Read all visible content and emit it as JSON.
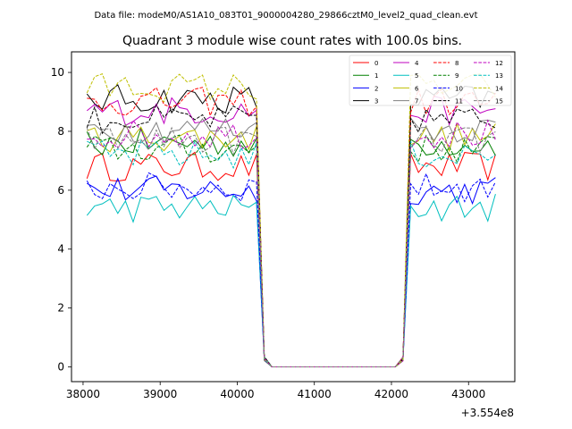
{
  "header": {
    "data_file_text": "Data file: modeM0/AS1A10_083T01_9000004280_29866cztM0_level2_quad_clean.evt"
  },
  "chart_data": {
    "type": "line",
    "title": "Quadrant 3 module wise count rates with 100.0s bins.",
    "xlabel": "",
    "ylabel": "",
    "x_offset_text": "+3.554e8",
    "xlim": [
      37850,
      43600
    ],
    "ylim": [
      -0.5,
      10.7
    ],
    "xticks": [
      38000,
      39000,
      40000,
      41000,
      42000,
      43000
    ],
    "xtick_labels": [
      "38000",
      "39000",
      "40000",
      "41000",
      "42000",
      "43000"
    ],
    "yticks": [
      0,
      2,
      4,
      6,
      8,
      10
    ],
    "ytick_labels": [
      "0",
      "2",
      "4",
      "6",
      "8",
      "10"
    ],
    "grid": false,
    "legend_position": "top-right",
    "legend_columns": 4,
    "series": [
      {
        "name": "0",
        "color": "#ff0000",
        "style": "solid",
        "base": 6.8
      },
      {
        "name": "1",
        "color": "#008000",
        "style": "solid",
        "base": 7.6
      },
      {
        "name": "2",
        "color": "#0000ff",
        "style": "solid",
        "base": 6.0
      },
      {
        "name": "3",
        "color": "#000000",
        "style": "solid",
        "base": 9.1
      },
      {
        "name": "4",
        "color": "#bf00bf",
        "style": "solid",
        "base": 8.7
      },
      {
        "name": "5",
        "color": "#00bfbf",
        "style": "solid",
        "base": 5.4
      },
      {
        "name": "6",
        "color": "#bfbf00",
        "style": "solid",
        "base": 7.8
      },
      {
        "name": "7",
        "color": "#808080",
        "style": "solid",
        "base": 8.1
      },
      {
        "name": "8",
        "color": "#ff0000",
        "style": "dashed",
        "base": 9.0
      },
      {
        "name": "9",
        "color": "#008000",
        "style": "dashed",
        "base": 7.4
      },
      {
        "name": "10",
        "color": "#0000ff",
        "style": "dashed",
        "base": 6.1
      },
      {
        "name": "11",
        "color": "#000000",
        "style": "dashed",
        "base": 8.4
      },
      {
        "name": "12",
        "color": "#bf00bf",
        "style": "dashed",
        "base": 7.9
      },
      {
        "name": "13",
        "color": "#00bfbf",
        "style": "dashed",
        "base": 7.2
      },
      {
        "name": "14",
        "color": "#bfbf00",
        "style": "dashed",
        "base": 9.5
      },
      {
        "name": "15",
        "color": "#808080",
        "style": "dashed",
        "base": 7.7
      }
    ],
    "time_bins": {
      "start": 38050,
      "step": 100,
      "count": 54,
      "gap_start": 40400,
      "gap_end": 42100,
      "drop_bin_a": 40350,
      "drop_bin_b": 42150
    }
  }
}
